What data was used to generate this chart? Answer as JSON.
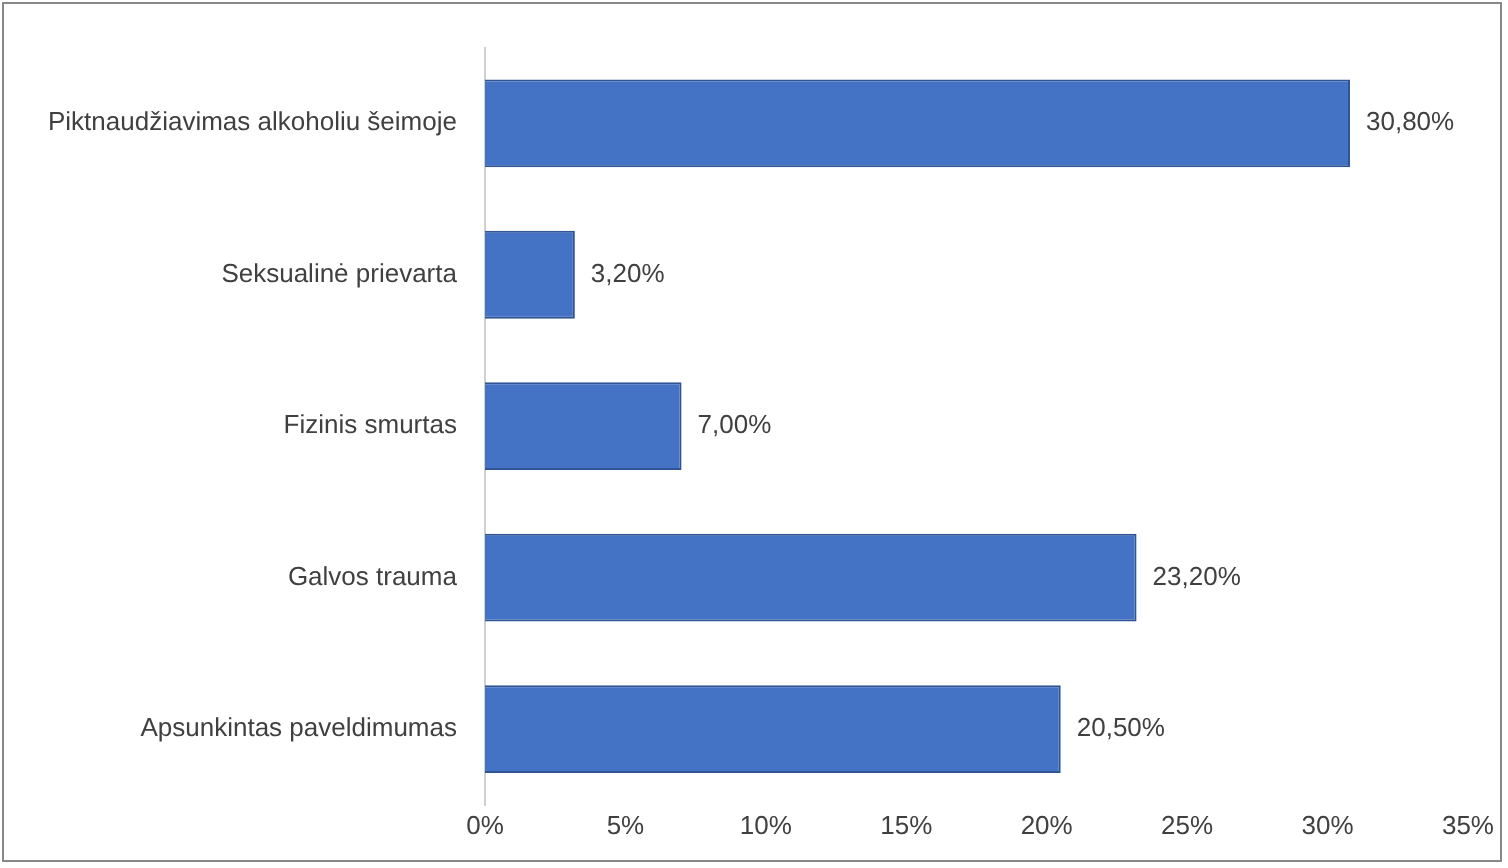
{
  "chart_data": {
    "type": "bar",
    "orientation": "horizontal",
    "categories": [
      "Piktnaudžiavimas alkoholiu šeimoje",
      "Seksualinė prievarta",
      "Fizinis smurtas",
      "Galvos trauma",
      "Apsunkintas paveldimumas"
    ],
    "values": [
      30.8,
      3.2,
      7.0,
      23.2,
      20.5
    ],
    "value_labels": [
      "30,80%",
      "3,20%",
      "7,00%",
      "23,20%",
      "20,50%"
    ],
    "color": "#4472c4",
    "xlim": [
      0,
      35
    ],
    "xticks": [
      {
        "value": 0,
        "label": "0%"
      },
      {
        "value": 5,
        "label": "5%"
      },
      {
        "value": 10,
        "label": "10%"
      },
      {
        "value": 15,
        "label": "15%"
      },
      {
        "value": 20,
        "label": "20%"
      },
      {
        "value": 25,
        "label": "25%"
      },
      {
        "value": 30,
        "label": "30%"
      },
      {
        "value": 35,
        "label": "35%"
      }
    ],
    "grid": false,
    "legend": false
  }
}
